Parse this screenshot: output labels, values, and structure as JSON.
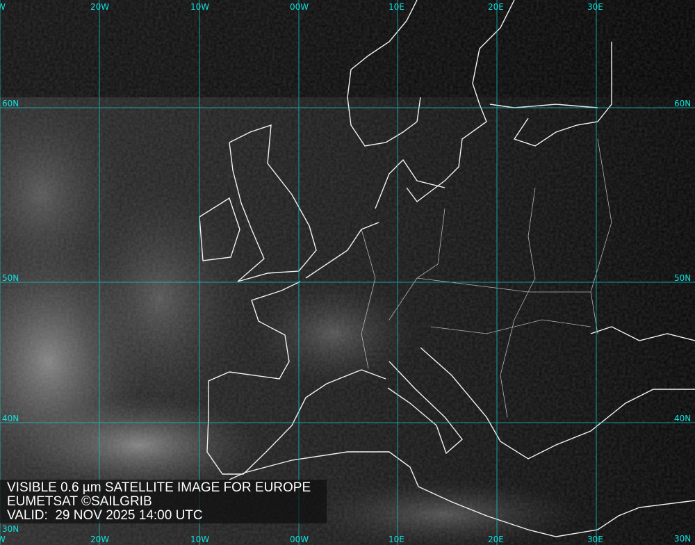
{
  "caption": {
    "line1": "VISIBLE 0.6 µm SATELLITE IMAGE FOR EUROPE",
    "line2": "EUMETSAT ©SAILGRIB",
    "line3": "VALID:  29 NOV 2025 14:00 UTC"
  },
  "grid": {
    "longitudes": [
      "W",
      "20W",
      "10W",
      "00W",
      "10E",
      "20E",
      "30E"
    ],
    "latitudes": [
      "60N",
      "50N",
      "40N",
      "30N"
    ],
    "color": "#10e0e0"
  }
}
